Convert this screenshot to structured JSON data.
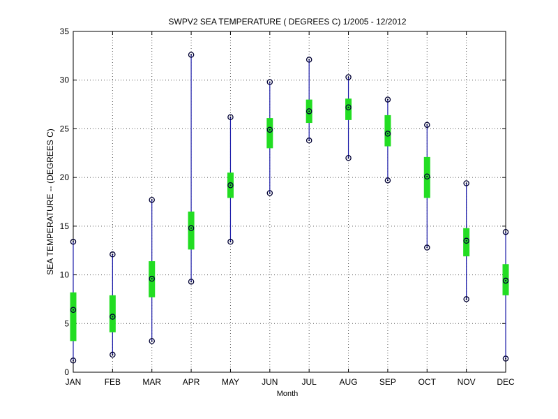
{
  "chart_data": {
    "type": "box",
    "title": "SWPV2  SEA TEMPERATURE ( DEGREES C) 1/2005 - 12/2012",
    "xlabel": "Month",
    "ylabel": "SEA TEMPERATURE -- (DEGREES C)",
    "ylim": [
      0,
      35
    ],
    "yticks": [
      "0",
      "5",
      "10",
      "15",
      "20",
      "25",
      "30",
      "35"
    ],
    "grid": true,
    "categories": [
      "JAN",
      "FEB",
      "MAR",
      "APR",
      "MAY",
      "JUN",
      "JUL",
      "AUG",
      "SEP",
      "OCT",
      "NOV",
      "DEC"
    ],
    "series": [
      {
        "min": 1.2,
        "q1": 3.2,
        "median": 6.4,
        "q3": 8.2,
        "max": 13.4
      },
      {
        "min": 1.8,
        "q1": 4.1,
        "median": 5.7,
        "q3": 7.9,
        "max": 12.1
      },
      {
        "min": 3.2,
        "q1": 7.7,
        "median": 9.6,
        "q3": 11.4,
        "max": 17.7
      },
      {
        "min": 9.3,
        "q1": 12.6,
        "median": 14.8,
        "q3": 16.5,
        "max": 32.6
      },
      {
        "min": 13.4,
        "q1": 17.9,
        "median": 19.2,
        "q3": 20.5,
        "max": 26.2
      },
      {
        "min": 18.4,
        "q1": 23.0,
        "median": 24.9,
        "q3": 26.1,
        "max": 29.8
      },
      {
        "min": 23.8,
        "q1": 25.6,
        "median": 26.8,
        "q3": 28.0,
        "max": 32.1
      },
      {
        "min": 22.0,
        "q1": 25.9,
        "median": 27.2,
        "q3": 28.1,
        "max": 30.3
      },
      {
        "min": 19.7,
        "q1": 23.2,
        "median": 24.5,
        "q3": 26.4,
        "max": 28.0
      },
      {
        "min": 12.8,
        "q1": 17.9,
        "median": 20.1,
        "q3": 22.1,
        "max": 25.4
      },
      {
        "min": 7.5,
        "q1": 11.9,
        "median": 13.5,
        "q3": 14.8,
        "max": 19.4
      },
      {
        "min": 1.4,
        "q1": 7.9,
        "median": 9.4,
        "q3": 11.1,
        "max": 14.4
      }
    ],
    "colors": {
      "whisker": "#1a1aa8",
      "box": "#22dd22",
      "marker": "#000033",
      "grid": "#555555",
      "axis": "#000000"
    }
  }
}
